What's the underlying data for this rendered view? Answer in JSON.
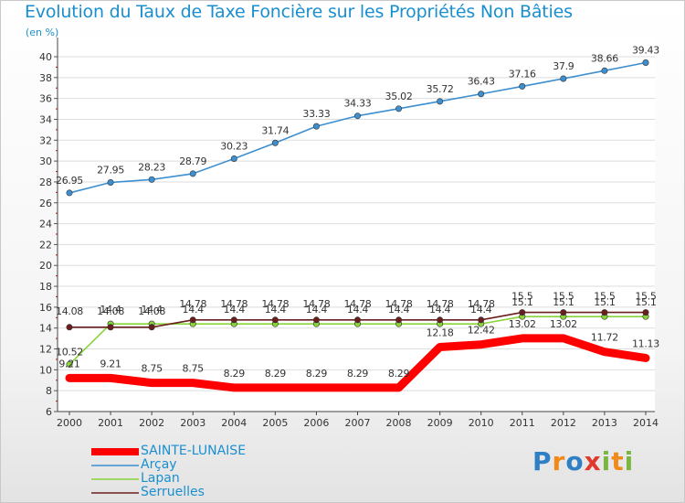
{
  "title": "Evolution du Taux de Taxe Foncière sur les Propriétés Non Bâties",
  "subtitle": "(en %)",
  "logo": {
    "text": "Proxiti",
    "letters": [
      "P",
      "r",
      "o",
      "x",
      "i",
      "t",
      "i"
    ],
    "colors": [
      "#2e7fc4",
      "#f08a1c",
      "#2e7fc4",
      "#e03a2f",
      "#7ab640",
      "#f08a1c",
      "#7ab640"
    ]
  },
  "chart_data": {
    "type": "line",
    "title": "Evolution du Taux de Taxe Foncière sur les Propriétés Non Bâties",
    "ylabel": "(en %)",
    "xlabel": "",
    "ylim": [
      6,
      40
    ],
    "yticks": [
      "6",
      "8",
      "10",
      "12",
      "14",
      "16",
      "18",
      "20",
      "22",
      "24",
      "26",
      "28",
      "30",
      "32",
      "34",
      "36",
      "38",
      "40"
    ],
    "categories": [
      "2000",
      "2001",
      "2002",
      "2003",
      "2004",
      "2005",
      "2006",
      "2007",
      "2008",
      "2009",
      "2010",
      "2011",
      "2012",
      "2013",
      "2014"
    ],
    "series": [
      {
        "name": "SAINTE-LUNAISE",
        "color": "#ff0000",
        "values": [
          9.21,
          9.21,
          8.75,
          8.75,
          8.29,
          8.29,
          8.29,
          8.29,
          8.29,
          12.18,
          12.42,
          13.02,
          13.02,
          11.72,
          11.13
        ],
        "labels": [
          "9.21",
          "9.21",
          "8.75",
          "8.75",
          "8.29",
          "8.29",
          "8.29",
          "8.29",
          "8.29",
          "12.18",
          "12.42",
          "13.02",
          "13.02",
          "11.72",
          "11.13"
        ]
      },
      {
        "name": "Arçay",
        "color": "#3d8fd0",
        "values": [
          26.95,
          27.95,
          28.23,
          28.79,
          30.23,
          31.74,
          33.33,
          34.33,
          35.02,
          35.72,
          36.43,
          37.16,
          37.9,
          38.66,
          39.43
        ],
        "labels": [
          "26.95",
          "27.95",
          "28.23",
          "28.79",
          "30.23",
          "31.74",
          "33.33",
          "34.33",
          "35.02",
          "35.72",
          "36.43",
          "37.16",
          "37.9",
          "38.66",
          "39.43"
        ]
      },
      {
        "name": "Lapan",
        "color": "#88d43a",
        "values": [
          10.52,
          14.4,
          14.4,
          14.4,
          14.4,
          14.4,
          14.4,
          14.4,
          14.4,
          14.4,
          14.4,
          15.1,
          15.1,
          15.1,
          15.1
        ],
        "labels": [
          "10.52",
          "14.4",
          "14.4",
          "14.4",
          "14.4",
          "14.4",
          "14.4",
          "14.4",
          "14.4",
          "14.4",
          "14.4",
          "15.1",
          "15.1",
          "15.1",
          "15.1"
        ]
      },
      {
        "name": "Serruelles",
        "color": "#6a1e1e",
        "values": [
          14.08,
          14.08,
          14.08,
          14.78,
          14.78,
          14.78,
          14.78,
          14.78,
          14.78,
          14.78,
          14.78,
          15.5,
          15.5,
          15.5,
          15.5
        ],
        "labels": [
          "14.08",
          "14.08",
          "14.08",
          "14.78",
          "14.78",
          "14.78",
          "14.78",
          "14.78",
          "14.78",
          "14.78",
          "14.78",
          "15.5",
          "15.5",
          "15.5",
          "15.5"
        ]
      }
    ]
  }
}
